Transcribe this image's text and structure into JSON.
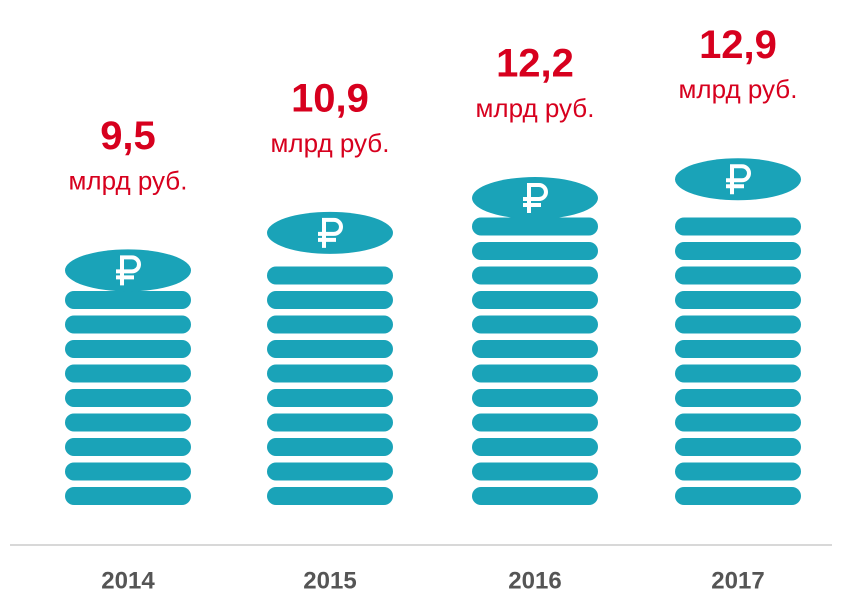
{
  "chart_data": {
    "type": "coin-stack",
    "categories": [
      "2014",
      "2015",
      "2016",
      "2017"
    ],
    "values": [
      9.5,
      10.9,
      12.2,
      12.9
    ],
    "value_labels": [
      "9,5",
      "10,9",
      "12,2",
      "12,9"
    ],
    "unit": "млрд руб.",
    "color": "#1aa3b8",
    "label_color": "#d7001e"
  }
}
